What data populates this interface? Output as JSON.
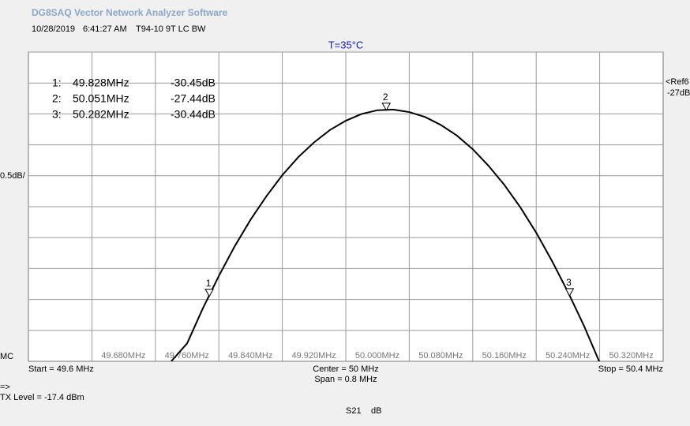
{
  "app_title": "DG8SAQ Vector Network Analyzer Software",
  "header": {
    "date": "10/28/2019",
    "time": "6:41:27 AM",
    "name": "T94-10 9T LC BW"
  },
  "chart_data": {
    "type": "line",
    "title": "T=35°C",
    "x": [
      49.78,
      49.8,
      49.82,
      49.84,
      49.86,
      49.88,
      49.9,
      49.92,
      49.94,
      49.96,
      49.98,
      50.0,
      50.02,
      50.04,
      50.06,
      50.08,
      50.1,
      50.12,
      50.14,
      50.16,
      50.18,
      50.2,
      50.22,
      50.24,
      50.26,
      50.28,
      50.3,
      50.32
    ],
    "series": [
      {
        "color": "#000000",
        "values": [
          -31.5,
          -31.21,
          -30.64,
          -30.12,
          -29.64,
          -29.21,
          -28.83,
          -28.49,
          -28.2,
          -27.96,
          -27.76,
          -27.61,
          -27.5,
          -27.44,
          -27.43,
          -27.47,
          -27.55,
          -27.68,
          -27.85,
          -28.07,
          -28.34,
          -28.65,
          -29.01,
          -29.42,
          -29.88,
          -30.38,
          -30.92,
          -31.52
        ]
      }
    ],
    "xlim": [
      49.6,
      50.4
    ],
    "ylim": [
      -31.5,
      -26.5
    ],
    "xticks": [
      {
        "value": 49.68,
        "label": "49.680MHz"
      },
      {
        "value": 49.76,
        "label": "49.760MHz"
      },
      {
        "value": 49.84,
        "label": "49.840MHz"
      },
      {
        "value": 49.92,
        "label": "49.920MHz"
      },
      {
        "value": 50.0,
        "label": "50.000MHz"
      },
      {
        "value": 50.08,
        "label": "50.080MHz"
      },
      {
        "value": 50.16,
        "label": "50.160MHz"
      },
      {
        "value": 50.24,
        "label": "50.240MHz"
      },
      {
        "value": 50.32,
        "label": "50.320MHz"
      }
    ],
    "yticks": [
      -31,
      -30.5,
      -30,
      -29.5,
      -29,
      -28.5,
      -28,
      -27.5,
      -27,
      -26.5
    ],
    "grid": true,
    "markers": [
      {
        "label": "1",
        "index": "1:",
        "x": 49.828,
        "x_label": "49.828MHz",
        "y": -30.45,
        "y_label": "-30.45dB"
      },
      {
        "label": "2",
        "index": "2:",
        "x": 50.051,
        "x_label": "50.051MHz",
        "y": -27.44,
        "y_label": "-27.44dB"
      },
      {
        "label": "3",
        "index": "3:",
        "x": 50.282,
        "x_label": "50.282MHz",
        "y": -30.44,
        "y_label": "-30.44dB"
      }
    ],
    "scale_label": "0.5dB/",
    "mc_label": "MC",
    "ref_label": "<Ref6",
    "ref_value_label": "-27dB",
    "start_label": "Start = 49.6 MHz",
    "center_label": "Center = 50 MHz",
    "span_label": "Span = 0.8 MHz",
    "stop_label": "Stop = 50.4 MHz",
    "arrow_label": "=>",
    "tx_level_label": "TX Level = -17.4 dBm",
    "trace_label": "S21",
    "unit_label": "dB"
  }
}
